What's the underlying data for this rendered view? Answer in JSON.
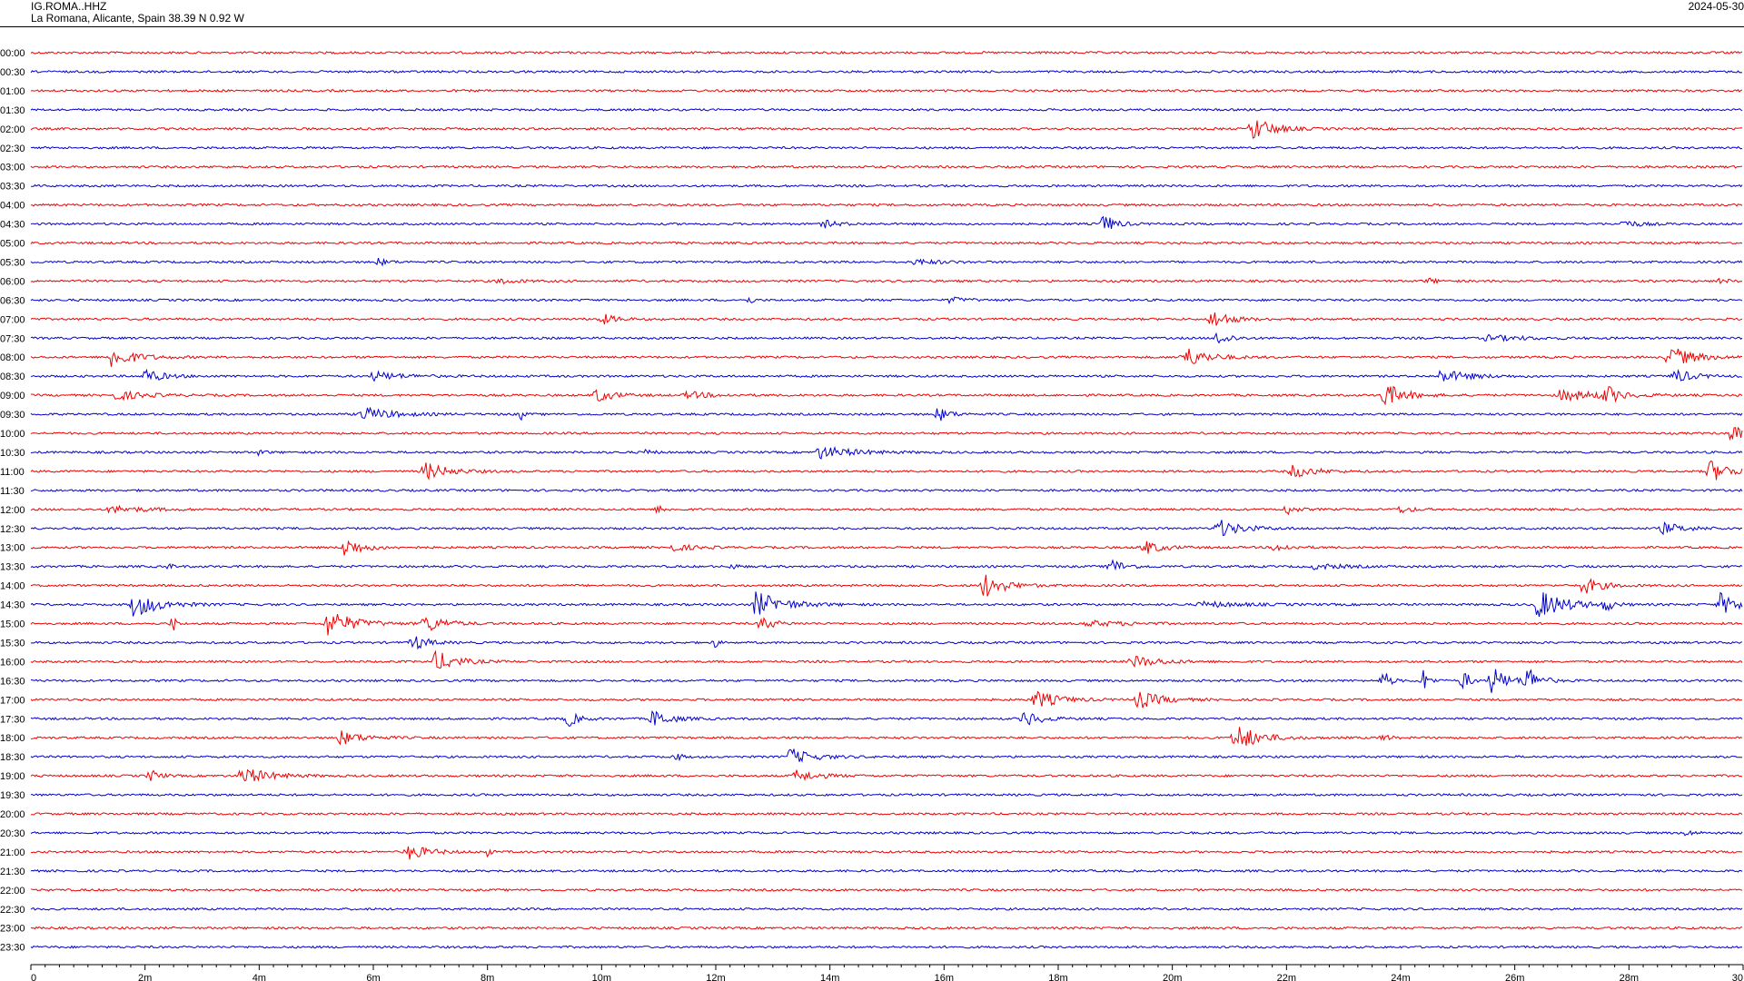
{
  "header": {
    "station": "IG.ROMA..HHZ",
    "location": "La Romana, Alicante, Spain  38.39 N 0.92 W",
    "date": "2024-05-30"
  },
  "chart_data": {
    "type": "line",
    "title": "",
    "xlabel": "",
    "ylabel": "",
    "xlim_minutes": [
      0,
      30
    ],
    "x_ticks": [
      "0",
      "2m",
      "4m",
      "6m",
      "8m",
      "10m",
      "12m",
      "14m",
      "16m",
      "18m",
      "20m",
      "22m",
      "24m",
      "26m",
      "28m",
      "30"
    ],
    "row_colors": [
      "#ee0000",
      "#0000cc"
    ],
    "rows": [
      {
        "label": "00:00",
        "events": []
      },
      {
        "label": "00:30",
        "events": []
      },
      {
        "label": "01:00",
        "events": []
      },
      {
        "label": "01:30",
        "events": []
      },
      {
        "label": "02:00",
        "events": [
          {
            "t": 21.4,
            "amp": 14,
            "dur": 0.7
          }
        ]
      },
      {
        "label": "02:30",
        "events": []
      },
      {
        "label": "03:00",
        "events": []
      },
      {
        "label": "03:30",
        "events": []
      },
      {
        "label": "04:00",
        "events": []
      },
      {
        "label": "04:30",
        "events": [
          {
            "t": 13.9,
            "amp": 4,
            "dur": 0.5
          },
          {
            "t": 18.8,
            "amp": 11,
            "dur": 0.4
          },
          {
            "t": 27.9,
            "amp": 4,
            "dur": 0.6
          }
        ]
      },
      {
        "label": "05:00",
        "events": []
      },
      {
        "label": "05:30",
        "events": [
          {
            "t": 6.1,
            "amp": 4,
            "dur": 0.3
          },
          {
            "t": 15.5,
            "amp": 3,
            "dur": 0.8
          }
        ]
      },
      {
        "label": "06:00",
        "events": [
          {
            "t": 8.2,
            "amp": 3,
            "dur": 0.6
          },
          {
            "t": 24.5,
            "amp": 3,
            "dur": 0.3
          },
          {
            "t": 29.6,
            "amp": 3,
            "dur": 0.3
          }
        ]
      },
      {
        "label": "06:30",
        "events": [
          {
            "t": 12.6,
            "amp": 5,
            "dur": 0.1
          },
          {
            "t": 16.1,
            "amp": 3,
            "dur": 0.6
          }
        ]
      },
      {
        "label": "07:00",
        "events": [
          {
            "t": 10.0,
            "amp": 6,
            "dur": 0.5
          },
          {
            "t": 20.7,
            "amp": 11,
            "dur": 0.6
          }
        ]
      },
      {
        "label": "07:30",
        "events": [
          {
            "t": 20.8,
            "amp": 9,
            "dur": 0.4
          },
          {
            "t": 25.5,
            "amp": 3,
            "dur": 1.5
          }
        ]
      },
      {
        "label": "08:00",
        "events": [
          {
            "t": 1.4,
            "amp": 12,
            "dur": 0.8
          },
          {
            "t": 20.2,
            "amp": 12,
            "dur": 0.8
          },
          {
            "t": 28.7,
            "amp": 13,
            "dur": 0.8
          }
        ]
      },
      {
        "label": "08:30",
        "events": [
          {
            "t": 2.0,
            "amp": 8,
            "dur": 0.6
          },
          {
            "t": 6.0,
            "amp": 5,
            "dur": 1.0
          },
          {
            "t": 24.7,
            "amp": 7,
            "dur": 1.0
          },
          {
            "t": 28.8,
            "amp": 8,
            "dur": 0.6
          }
        ]
      },
      {
        "label": "09:00",
        "events": [
          {
            "t": 1.5,
            "amp": 5,
            "dur": 1.0
          },
          {
            "t": 9.9,
            "amp": 8,
            "dur": 0.6
          },
          {
            "t": 11.5,
            "amp": 4,
            "dur": 0.8
          },
          {
            "t": 23.7,
            "amp": 14,
            "dur": 0.7
          },
          {
            "t": 26.8,
            "amp": 6,
            "dur": 1.5
          },
          {
            "t": 27.6,
            "amp": 10,
            "dur": 0.4
          }
        ]
      },
      {
        "label": "09:30",
        "events": [
          {
            "t": 5.8,
            "amp": 8,
            "dur": 1.0
          },
          {
            "t": 8.6,
            "amp": 6,
            "dur": 0.1
          },
          {
            "t": 15.9,
            "amp": 8,
            "dur": 0.4
          }
        ]
      },
      {
        "label": "10:00",
        "events": [
          {
            "t": 29.8,
            "amp": 10,
            "dur": 0.4
          }
        ]
      },
      {
        "label": "10:30",
        "events": [
          {
            "t": 4.0,
            "amp": 3,
            "dur": 0.2
          },
          {
            "t": 10.8,
            "amp": 4,
            "dur": 0.2
          },
          {
            "t": 13.8,
            "amp": 7,
            "dur": 1.2
          }
        ]
      },
      {
        "label": "11:00",
        "events": [
          {
            "t": 6.9,
            "amp": 10,
            "dur": 0.8
          },
          {
            "t": 22.1,
            "amp": 7,
            "dur": 0.8
          },
          {
            "t": 29.4,
            "amp": 13,
            "dur": 0.7
          }
        ]
      },
      {
        "label": "11:30",
        "events": []
      },
      {
        "label": "12:00",
        "events": [
          {
            "t": 1.4,
            "amp": 4,
            "dur": 1.2
          },
          {
            "t": 11.0,
            "amp": 5,
            "dur": 0.2
          },
          {
            "t": 22.0,
            "amp": 6,
            "dur": 0.3
          },
          {
            "t": 24.0,
            "amp": 4,
            "dur": 0.4
          }
        ]
      },
      {
        "label": "12:30",
        "events": [
          {
            "t": 20.8,
            "amp": 10,
            "dur": 0.8
          },
          {
            "t": 28.6,
            "amp": 6,
            "dur": 0.8
          }
        ]
      },
      {
        "label": "13:00",
        "events": [
          {
            "t": 5.5,
            "amp": 11,
            "dur": 0.6
          },
          {
            "t": 11.2,
            "amp": 4,
            "dur": 0.8
          },
          {
            "t": 19.5,
            "amp": 8,
            "dur": 0.6
          },
          {
            "t": 21.8,
            "amp": 4,
            "dur": 0.6
          }
        ]
      },
      {
        "label": "13:30",
        "events": [
          {
            "t": 2.4,
            "amp": 3,
            "dur": 0.2
          },
          {
            "t": 12.3,
            "amp": 3,
            "dur": 0.2
          },
          {
            "t": 18.9,
            "amp": 9,
            "dur": 0.5
          },
          {
            "t": 22.5,
            "amp": 3,
            "dur": 1.0
          }
        ]
      },
      {
        "label": "14:00",
        "events": [
          {
            "t": 16.7,
            "amp": 14,
            "dur": 0.7
          },
          {
            "t": 27.2,
            "amp": 10,
            "dur": 0.6
          }
        ]
      },
      {
        "label": "14:30",
        "events": [
          {
            "t": 1.8,
            "amp": 14,
            "dur": 0.9
          },
          {
            "t": 12.7,
            "amp": 14,
            "dur": 1.0
          },
          {
            "t": 20.5,
            "amp": 3,
            "dur": 1.5
          },
          {
            "t": 26.4,
            "amp": 16,
            "dur": 1.0
          },
          {
            "t": 27.6,
            "amp": 8,
            "dur": 0.2
          },
          {
            "t": 29.6,
            "amp": 12,
            "dur": 0.7
          }
        ]
      },
      {
        "label": "15:00",
        "events": [
          {
            "t": 2.5,
            "amp": 10,
            "dur": 0.1
          },
          {
            "t": 5.2,
            "amp": 15,
            "dur": 0.9
          },
          {
            "t": 6.9,
            "amp": 10,
            "dur": 0.7
          },
          {
            "t": 12.8,
            "amp": 9,
            "dur": 0.4
          },
          {
            "t": 18.5,
            "amp": 3,
            "dur": 1.5
          }
        ]
      },
      {
        "label": "15:30",
        "events": [
          {
            "t": 6.7,
            "amp": 9,
            "dur": 0.5
          },
          {
            "t": 12.0,
            "amp": 6,
            "dur": 0.1
          }
        ]
      },
      {
        "label": "16:00",
        "events": [
          {
            "t": 7.1,
            "amp": 12,
            "dur": 0.7
          },
          {
            "t": 19.3,
            "amp": 7,
            "dur": 0.9
          }
        ]
      },
      {
        "label": "16:30",
        "events": [
          {
            "t": 23.7,
            "amp": 14,
            "dur": 0.2
          },
          {
            "t": 24.4,
            "amp": 12,
            "dur": 0.2
          },
          {
            "t": 25.1,
            "amp": 14,
            "dur": 0.2
          },
          {
            "t": 25.6,
            "amp": 16,
            "dur": 0.5
          },
          {
            "t": 26.2,
            "amp": 17,
            "dur": 0.4
          }
        ]
      },
      {
        "label": "17:00",
        "events": [
          {
            "t": 17.6,
            "amp": 10,
            "dur": 0.8
          },
          {
            "t": 19.4,
            "amp": 10,
            "dur": 0.8
          }
        ]
      },
      {
        "label": "17:30",
        "events": [
          {
            "t": 9.4,
            "amp": 9,
            "dur": 0.4
          },
          {
            "t": 10.9,
            "amp": 10,
            "dur": 0.6
          },
          {
            "t": 17.4,
            "amp": 9,
            "dur": 0.6
          }
        ]
      },
      {
        "label": "18:00",
        "events": [
          {
            "t": 5.4,
            "amp": 8,
            "dur": 0.8
          },
          {
            "t": 21.1,
            "amp": 16,
            "dur": 0.8
          },
          {
            "t": 23.7,
            "amp": 5,
            "dur": 0.2
          }
        ]
      },
      {
        "label": "18:30",
        "events": [
          {
            "t": 11.3,
            "amp": 5,
            "dur": 0.2
          },
          {
            "t": 13.3,
            "amp": 9,
            "dur": 0.8
          }
        ]
      },
      {
        "label": "19:00",
        "events": [
          {
            "t": 2.1,
            "amp": 7,
            "dur": 0.3
          },
          {
            "t": 3.7,
            "amp": 10,
            "dur": 0.9
          },
          {
            "t": 13.4,
            "amp": 6,
            "dur": 0.8
          }
        ]
      },
      {
        "label": "19:30",
        "events": []
      },
      {
        "label": "20:00",
        "events": []
      },
      {
        "label": "20:30",
        "events": [
          {
            "t": 29.0,
            "amp": 3,
            "dur": 0.3
          }
        ]
      },
      {
        "label": "21:00",
        "events": [
          {
            "t": 6.6,
            "amp": 9,
            "dur": 0.7
          },
          {
            "t": 8.0,
            "amp": 6,
            "dur": 0.1
          }
        ]
      },
      {
        "label": "21:30",
        "events": []
      },
      {
        "label": "22:00",
        "events": []
      },
      {
        "label": "22:30",
        "events": []
      },
      {
        "label": "23:00",
        "events": []
      },
      {
        "label": "23:30",
        "events": []
      }
    ]
  }
}
